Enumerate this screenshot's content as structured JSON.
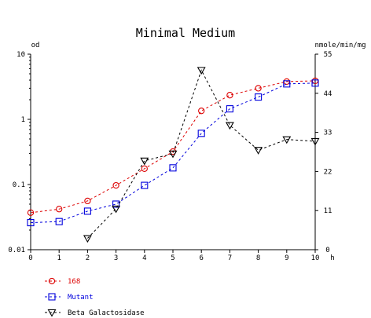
{
  "chart_data": {
    "type": "line",
    "title": "Minimal Medium",
    "xlabel": "h",
    "ylabel_left": "od",
    "ylabel_right": "nmole/min/mg",
    "x_ticks": [
      "0",
      "1",
      "2",
      "3",
      "4",
      "5",
      "6",
      "7",
      "8",
      "9",
      "10"
    ],
    "y_left_ticks": [
      "0.01",
      "0.1",
      "1",
      "10"
    ],
    "y_right_ticks": [
      "0",
      "11",
      "22",
      "33",
      "44",
      "55"
    ],
    "y_left_scale": "log",
    "y_left_lim": [
      0.01,
      10
    ],
    "y_right_lim": [
      0,
      55
    ],
    "x_lim": [
      0,
      10
    ],
    "grid": false,
    "legend_position": "bottom-left",
    "series": [
      {
        "name": "168",
        "axis": "left",
        "color": "#dd0000",
        "marker": "circle",
        "x": [
          0,
          1,
          2,
          3,
          4,
          5,
          6,
          7,
          8,
          9,
          10
        ],
        "values": [
          0.037,
          0.042,
          0.056,
          0.097,
          0.175,
          0.32,
          1.35,
          2.35,
          3.0,
          3.8,
          3.9
        ]
      },
      {
        "name": "Mutant",
        "axis": "left",
        "color": "#0000dd",
        "marker": "square",
        "x": [
          0,
          1,
          2,
          3,
          4,
          5,
          6,
          7,
          8,
          9,
          10
        ],
        "values": [
          0.026,
          0.027,
          0.039,
          0.05,
          0.097,
          0.18,
          0.61,
          1.45,
          2.2,
          3.5,
          3.6
        ]
      },
      {
        "name": "Beta Galactosidase",
        "axis": "right",
        "color": "#000000",
        "marker": "triangle-down",
        "x": [
          2,
          3,
          4,
          5,
          6,
          7,
          8,
          9,
          10
        ],
        "values": [
          3.2,
          11.5,
          25,
          27,
          50.5,
          35,
          28,
          31,
          30.5
        ]
      }
    ]
  }
}
